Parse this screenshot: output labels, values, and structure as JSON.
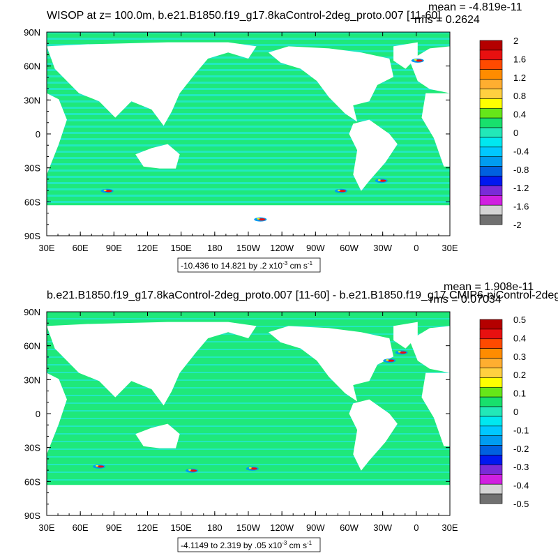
{
  "chart_data": [
    {
      "type": "heatmap",
      "title": "WISOP at z= 100.0m, b.e21.B1850.f19_g17.8kaControl-2deg_proto.007 [11-60]",
      "stats": {
        "mean": "mean = -4.819e-11",
        "rms": "rms = 0.2624"
      },
      "x_ticks": [
        "30E",
        "60E",
        "90E",
        "120E",
        "150E",
        "180",
        "150W",
        "120W",
        "90W",
        "60W",
        "30W",
        "0",
        "30E"
      ],
      "y_ticks": [
        "90N",
        "60N",
        "30N",
        "0",
        "30S",
        "60S",
        "90S"
      ],
      "xlim": [
        "30E",
        "30E"
      ],
      "ylim": [
        "90S",
        "90N"
      ],
      "colorbar": {
        "labels": [
          "2",
          "1.6",
          "1.2",
          "0.8",
          "0.4",
          "0",
          "-0.4",
          "-0.8",
          "-1.2",
          "-1.6",
          "-2"
        ],
        "colors": [
          "#b40000",
          "#e81010",
          "#ff4a00",
          "#ff8c00",
          "#ffae30",
          "#ffd040",
          "#ffff00",
          "#66e619",
          "#18e06c",
          "#22e8b8",
          "#00e8f0",
          "#00c8ff",
          "#009cf0",
          "#0060e0",
          "#0018f0",
          "#7a2bd8",
          "#d020e0",
          "#d4d4d4",
          "#707070"
        ]
      },
      "range_label": {
        "text": "-10.436 to 14.821 by .2 x10",
        "exp": "-3",
        "unit": " cm s",
        "unit_exp": "-1"
      }
    },
    {
      "type": "heatmap",
      "title": "b.e21.B1850.f19_g17.8kaControl-2deg_proto.007 [11-60] - b.e21.B1850.f19_g17.CMIP6-piControl-2deg",
      "stats": {
        "mean": "mean = 1.908e-11",
        "rms": "rms = 0.07034"
      },
      "x_ticks": [
        "30E",
        "60E",
        "90E",
        "120E",
        "150E",
        "180",
        "150W",
        "120W",
        "90W",
        "60W",
        "30W",
        "0",
        "30E"
      ],
      "y_ticks": [
        "90N",
        "60N",
        "30N",
        "0",
        "30S",
        "60S",
        "90S"
      ],
      "xlim": [
        "30E",
        "30E"
      ],
      "ylim": [
        "90S",
        "90N"
      ],
      "colorbar": {
        "labels": [
          "0.5",
          "0.4",
          "0.3",
          "0.2",
          "0.1",
          "0",
          "-0.1",
          "-0.2",
          "-0.3",
          "-0.4",
          "-0.5"
        ],
        "colors": [
          "#b40000",
          "#e81010",
          "#ff4a00",
          "#ff8c00",
          "#ffae30",
          "#ffd040",
          "#ffff00",
          "#66e619",
          "#18e06c",
          "#22e8b8",
          "#00e8f0",
          "#00c8ff",
          "#009cf0",
          "#0060e0",
          "#0018f0",
          "#7a2bd8",
          "#d020e0",
          "#d4d4d4",
          "#707070"
        ]
      },
      "range_label": {
        "text": "-4.1149 to 2.319 by .05 x10",
        "exp": "-3",
        "unit": " cm s",
        "unit_exp": "-1"
      }
    }
  ],
  "colors": {
    "ocean_main": "#1fe87a",
    "ocean_band": "#22e8c0",
    "anomaly_blue": "#009cf0",
    "anomaly_red": "#e81010",
    "anomaly_yellow": "#ffff00"
  }
}
